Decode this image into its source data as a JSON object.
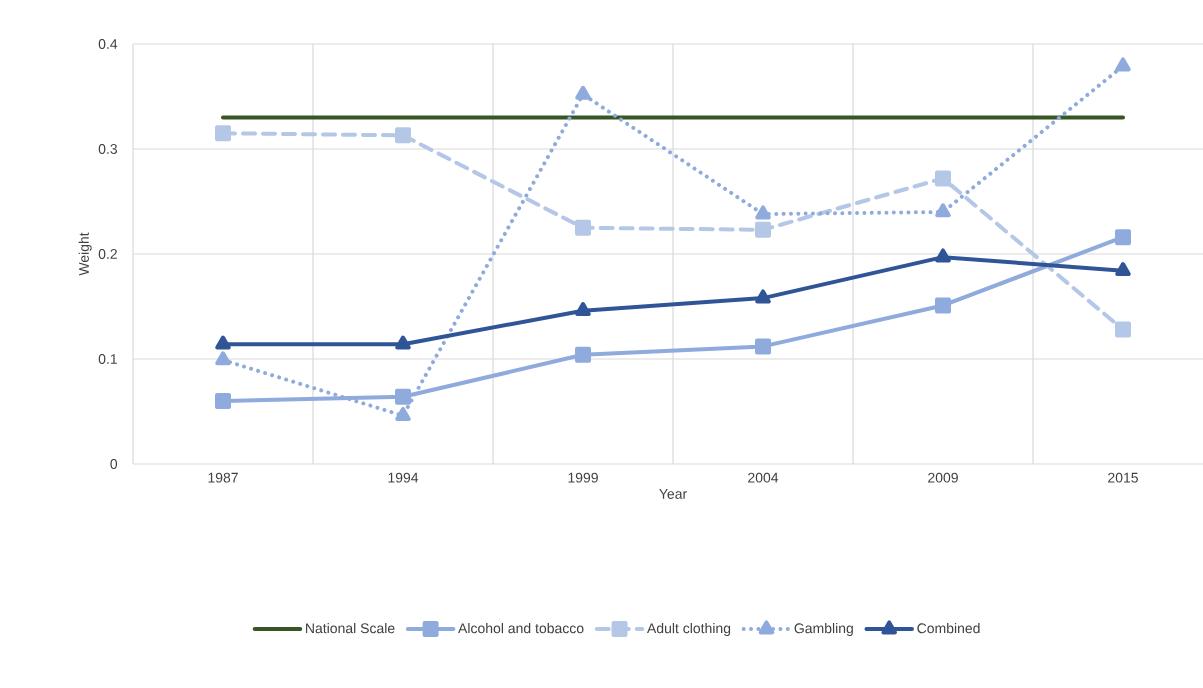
{
  "chart_data": {
    "type": "line",
    "xlabel": "Year",
    "ylabel": "Weight",
    "categories": [
      "1987",
      "1994",
      "1999",
      "2004",
      "2009",
      "2015"
    ],
    "ylim": [
      0,
      0.4
    ],
    "yticks": [
      0,
      0.1,
      0.2,
      0.3,
      0.4
    ],
    "grid": true,
    "legend": "bottom",
    "series": [
      {
        "name": "National Scale",
        "color": "#375623",
        "line_style": "solid",
        "marker": "none",
        "values": [
          0.33,
          0.33,
          0.33,
          0.33,
          0.33,
          0.33
        ]
      },
      {
        "name": "Alcohol and tobacco",
        "color": "#8faadc",
        "line_style": "solid",
        "marker": "square",
        "values": [
          0.06,
          0.064,
          0.104,
          0.112,
          0.151,
          0.216
        ]
      },
      {
        "name": "Adult clothing",
        "color": "#b4c7e7",
        "line_style": "dashed",
        "marker": "square",
        "values": [
          0.315,
          0.313,
          0.225,
          0.223,
          0.272,
          0.128
        ]
      },
      {
        "name": "Gambling",
        "color": "#8faadc",
        "line_style": "dotted",
        "marker": "triangle",
        "values": [
          0.099,
          0.046,
          0.352,
          0.238,
          0.24,
          0.379
        ]
      },
      {
        "name": "Combined",
        "color": "#2f5597",
        "line_style": "solid",
        "marker": "triangle",
        "values": [
          0.114,
          0.114,
          0.146,
          0.158,
          0.197,
          0.184
        ]
      }
    ]
  }
}
